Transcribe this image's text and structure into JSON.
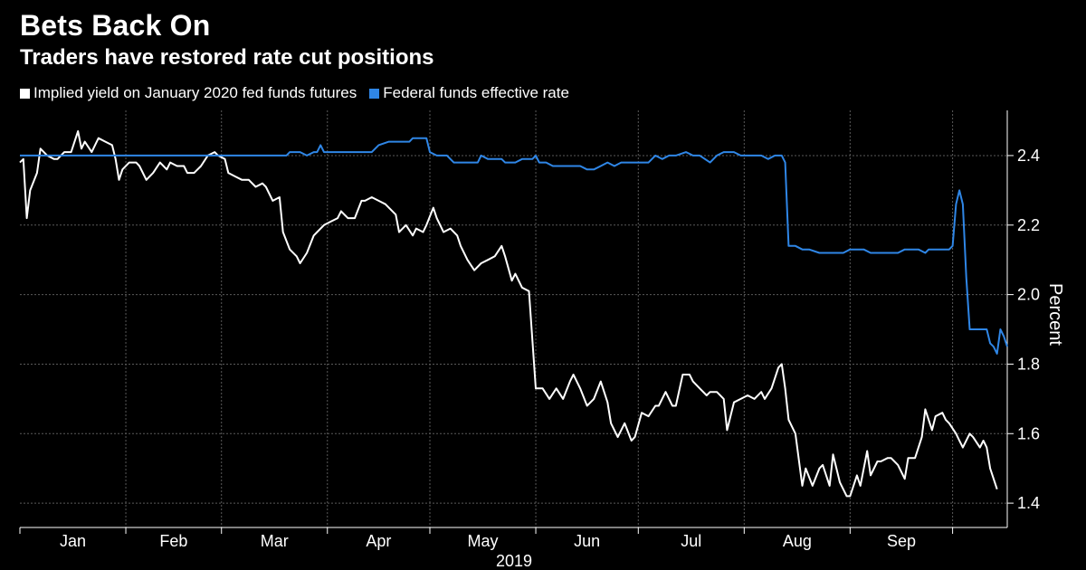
{
  "chart_data": {
    "type": "line",
    "title": "Bets Back On",
    "subtitle": "Traders have restored rate cut positions",
    "xlabel": "2019",
    "ylabel": "Percent",
    "ylim": [
      1.33,
      2.53
    ],
    "yticks": [
      1.4,
      1.6,
      1.8,
      2.0,
      2.2,
      2.4
    ],
    "ytick_labels": [
      "1.4",
      "1.6",
      "1.8",
      "2.0",
      "2.2",
      "2.4"
    ],
    "grid": true,
    "months": [
      "Jan",
      "Feb",
      "Mar",
      "Apr",
      "May",
      "Jun",
      "Jul",
      "Aug",
      "Sep"
    ],
    "day_range": [
      1,
      273
    ],
    "series": [
      {
        "name": "Implied yield on January 2020 fed funds futures",
        "color": "#ffffff",
        "points": [
          [
            1,
            2.38
          ],
          [
            2,
            2.39
          ],
          [
            3,
            2.22
          ],
          [
            4,
            2.3
          ],
          [
            6,
            2.35
          ],
          [
            7,
            2.42
          ],
          [
            8,
            2.41
          ],
          [
            9,
            2.4
          ],
          [
            11,
            2.39
          ],
          [
            12,
            2.39
          ],
          [
            14,
            2.41
          ],
          [
            16,
            2.41
          ],
          [
            18,
            2.47
          ],
          [
            19,
            2.42
          ],
          [
            20,
            2.44
          ],
          [
            22,
            2.41
          ],
          [
            24,
            2.45
          ],
          [
            26,
            2.44
          ],
          [
            28,
            2.43
          ],
          [
            29,
            2.39
          ],
          [
            30,
            2.33
          ],
          [
            31,
            2.36
          ],
          [
            33,
            2.38
          ],
          [
            35,
            2.38
          ],
          [
            36,
            2.37
          ],
          [
            38,
            2.33
          ],
          [
            40,
            2.35
          ],
          [
            42,
            2.38
          ],
          [
            44,
            2.36
          ],
          [
            45,
            2.38
          ],
          [
            47,
            2.37
          ],
          [
            49,
            2.37
          ],
          [
            50,
            2.35
          ],
          [
            52,
            2.35
          ],
          [
            54,
            2.37
          ],
          [
            56,
            2.4
          ],
          [
            58,
            2.41
          ],
          [
            59,
            2.4
          ],
          [
            61,
            2.39
          ],
          [
            62,
            2.35
          ],
          [
            64,
            2.34
          ],
          [
            66,
            2.33
          ],
          [
            68,
            2.33
          ],
          [
            70,
            2.31
          ],
          [
            72,
            2.32
          ],
          [
            73,
            2.31
          ],
          [
            75,
            2.27
          ],
          [
            77,
            2.28
          ],
          [
            78,
            2.18
          ],
          [
            80,
            2.13
          ],
          [
            82,
            2.11
          ],
          [
            83,
            2.09
          ],
          [
            85,
            2.12
          ],
          [
            87,
            2.17
          ],
          [
            88,
            2.18
          ],
          [
            90,
            2.2
          ],
          [
            92,
            2.21
          ],
          [
            94,
            2.22
          ],
          [
            95,
            2.24
          ],
          [
            97,
            2.22
          ],
          [
            99,
            2.22
          ],
          [
            101,
            2.27
          ],
          [
            102,
            2.27
          ],
          [
            104,
            2.28
          ],
          [
            106,
            2.27
          ],
          [
            108,
            2.26
          ],
          [
            109,
            2.25
          ],
          [
            111,
            2.23
          ],
          [
            112,
            2.18
          ],
          [
            114,
            2.2
          ],
          [
            116,
            2.17
          ],
          [
            117,
            2.19
          ],
          [
            119,
            2.18
          ],
          [
            120,
            2.2
          ],
          [
            122,
            2.25
          ],
          [
            123,
            2.22
          ],
          [
            125,
            2.18
          ],
          [
            127,
            2.19
          ],
          [
            129,
            2.17
          ],
          [
            130,
            2.14
          ],
          [
            132,
            2.1
          ],
          [
            134,
            2.07
          ],
          [
            136,
            2.09
          ],
          [
            138,
            2.1
          ],
          [
            140,
            2.11
          ],
          [
            142,
            2.14
          ],
          [
            143,
            2.11
          ],
          [
            145,
            2.04
          ],
          [
            146,
            2.06
          ],
          [
            148,
            2.02
          ],
          [
            150,
            2.01
          ],
          [
            152,
            1.73
          ],
          [
            154,
            1.73
          ],
          [
            156,
            1.7
          ],
          [
            158,
            1.73
          ],
          [
            160,
            1.7
          ],
          [
            162,
            1.75
          ],
          [
            163,
            1.77
          ],
          [
            165,
            1.73
          ],
          [
            167,
            1.68
          ],
          [
            169,
            1.7
          ],
          [
            171,
            1.75
          ],
          [
            173,
            1.69
          ],
          [
            174,
            1.63
          ],
          [
            176,
            1.59
          ],
          [
            178,
            1.63
          ],
          [
            180,
            1.58
          ],
          [
            181,
            1.59
          ],
          [
            183,
            1.66
          ],
          [
            185,
            1.65
          ],
          [
            187,
            1.68
          ],
          [
            188,
            1.68
          ],
          [
            190,
            1.72
          ],
          [
            192,
            1.68
          ],
          [
            193,
            1.68
          ],
          [
            195,
            1.77
          ],
          [
            197,
            1.77
          ],
          [
            198,
            1.75
          ],
          [
            200,
            1.73
          ],
          [
            202,
            1.71
          ],
          [
            203,
            1.72
          ],
          [
            205,
            1.72
          ],
          [
            207,
            1.7
          ],
          [
            208,
            1.61
          ],
          [
            210,
            1.69
          ],
          [
            212,
            1.7
          ],
          [
            214,
            1.71
          ],
          [
            216,
            1.7
          ],
          [
            218,
            1.72
          ],
          [
            219,
            1.7
          ],
          [
            221,
            1.73
          ],
          [
            223,
            1.79
          ],
          [
            224,
            1.8
          ],
          [
            225,
            1.73
          ],
          [
            226,
            1.64
          ],
          [
            228,
            1.6
          ],
          [
            230,
            1.45
          ],
          [
            231,
            1.5
          ],
          [
            233,
            1.45
          ],
          [
            235,
            1.5
          ],
          [
            236,
            1.51
          ],
          [
            238,
            1.45
          ],
          [
            239,
            1.54
          ],
          [
            241,
            1.46
          ],
          [
            243,
            1.42
          ],
          [
            244,
            1.42
          ],
          [
            246,
            1.48
          ],
          [
            247,
            1.45
          ],
          [
            249,
            1.55
          ],
          [
            250,
            1.48
          ],
          [
            252,
            1.52
          ],
          [
            253,
            1.52
          ],
          [
            255,
            1.53
          ],
          [
            256,
            1.53
          ],
          [
            258,
            1.51
          ],
          [
            260,
            1.47
          ],
          [
            261,
            1.53
          ],
          [
            263,
            1.53
          ],
          [
            265,
            1.59
          ],
          [
            266,
            1.67
          ],
          [
            268,
            1.61
          ],
          [
            269,
            1.65
          ],
          [
            271,
            1.66
          ],
          [
            272,
            1.64
          ],
          [
            273,
            1.63
          ],
          [
            275,
            1.6
          ],
          [
            276,
            1.58
          ],
          [
            277,
            1.56
          ],
          [
            279,
            1.6
          ],
          [
            280,
            1.59
          ],
          [
            282,
            1.56
          ],
          [
            283,
            1.58
          ],
          [
            284,
            1.56
          ],
          [
            285,
            1.5
          ],
          [
            287,
            1.44
          ]
        ]
      },
      {
        "name": "Federal funds effective rate",
        "color": "#2f86e6",
        "points": [
          [
            1,
            2.4
          ],
          [
            60,
            2.4
          ],
          [
            79,
            2.4
          ],
          [
            80,
            2.41
          ],
          [
            83,
            2.41
          ],
          [
            85,
            2.4
          ],
          [
            87,
            2.41
          ],
          [
            88,
            2.41
          ],
          [
            89,
            2.43
          ],
          [
            90,
            2.41
          ],
          [
            100,
            2.41
          ],
          [
            104,
            2.41
          ],
          [
            106,
            2.43
          ],
          [
            109,
            2.44
          ],
          [
            115,
            2.44
          ],
          [
            116,
            2.45
          ],
          [
            120,
            2.45
          ],
          [
            121,
            2.41
          ],
          [
            123,
            2.4
          ],
          [
            126,
            2.4
          ],
          [
            128,
            2.38
          ],
          [
            131,
            2.38
          ],
          [
            133,
            2.38
          ],
          [
            135,
            2.38
          ],
          [
            136,
            2.4
          ],
          [
            138,
            2.39
          ],
          [
            142,
            2.39
          ],
          [
            143,
            2.38
          ],
          [
            146,
            2.38
          ],
          [
            148,
            2.39
          ],
          [
            151,
            2.39
          ],
          [
            152,
            2.4
          ],
          [
            153,
            2.38
          ],
          [
            155,
            2.38
          ],
          [
            157,
            2.37
          ],
          [
            160,
            2.37
          ],
          [
            165,
            2.37
          ],
          [
            167,
            2.36
          ],
          [
            169,
            2.36
          ],
          [
            171,
            2.37
          ],
          [
            173,
            2.38
          ],
          [
            175,
            2.37
          ],
          [
            177,
            2.38
          ],
          [
            179,
            2.38
          ],
          [
            181,
            2.38
          ],
          [
            183,
            2.38
          ],
          [
            185,
            2.38
          ],
          [
            187,
            2.4
          ],
          [
            189,
            2.39
          ],
          [
            191,
            2.4
          ],
          [
            193,
            2.4
          ],
          [
            196,
            2.41
          ],
          [
            198,
            2.4
          ],
          [
            200,
            2.4
          ],
          [
            203,
            2.38
          ],
          [
            205,
            2.4
          ],
          [
            207,
            2.41
          ],
          [
            210,
            2.41
          ],
          [
            212,
            2.4
          ],
          [
            215,
            2.4
          ],
          [
            218,
            2.4
          ],
          [
            220,
            2.39
          ],
          [
            222,
            2.4
          ],
          [
            224,
            2.4
          ],
          [
            225,
            2.38
          ],
          [
            226,
            2.14
          ],
          [
            228,
            2.14
          ],
          [
            230,
            2.13
          ],
          [
            232,
            2.13
          ],
          [
            235,
            2.12
          ],
          [
            238,
            2.12
          ],
          [
            240,
            2.12
          ],
          [
            242,
            2.12
          ],
          [
            244,
            2.13
          ],
          [
            246,
            2.13
          ],
          [
            248,
            2.13
          ],
          [
            250,
            2.12
          ],
          [
            252,
            2.12
          ],
          [
            255,
            2.12
          ],
          [
            258,
            2.12
          ],
          [
            260,
            2.13
          ],
          [
            262,
            2.13
          ],
          [
            264,
            2.13
          ],
          [
            266,
            2.12
          ],
          [
            267,
            2.13
          ],
          [
            270,
            2.13
          ],
          [
            273,
            2.13
          ],
          [
            274,
            2.14
          ],
          [
            275,
            2.26
          ],
          [
            276,
            2.3
          ],
          [
            277,
            2.26
          ],
          [
            278,
            2.05
          ],
          [
            279,
            1.9
          ],
          [
            280,
            1.9
          ],
          [
            282,
            1.9
          ],
          [
            284,
            1.9
          ],
          [
            285,
            1.86
          ],
          [
            286,
            1.85
          ],
          [
            287,
            1.83
          ],
          [
            288,
            1.9
          ],
          [
            289,
            1.88
          ],
          [
            290,
            1.85
          ]
        ]
      }
    ]
  },
  "colors": {
    "background": "#000000",
    "grid": "#5a5a5a",
    "axis": "#ffffff"
  }
}
